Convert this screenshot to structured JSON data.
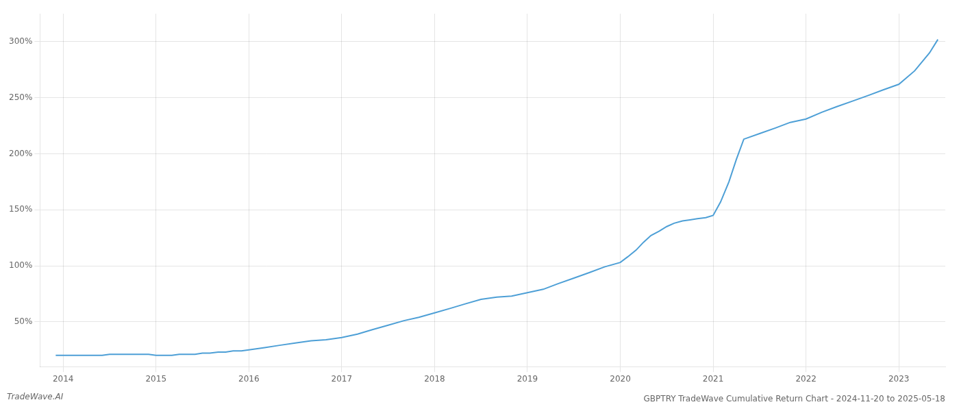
{
  "chart_data": {
    "type": "line",
    "title": "GBPTRY TradeWave Cumulative Return Chart - 2024-11-20 to 2025-05-18",
    "annotations": [
      "TradeWave.AI"
    ],
    "color": "#4d9fd6",
    "x": [
      2013.92,
      2014.0,
      2014.08,
      2014.17,
      2014.25,
      2014.33,
      2014.42,
      2014.5,
      2014.58,
      2014.67,
      2014.75,
      2014.83,
      2014.92,
      2015.0,
      2015.08,
      2015.17,
      2015.25,
      2015.33,
      2015.42,
      2015.5,
      2015.58,
      2015.67,
      2015.75,
      2015.83,
      2015.92,
      2016.0,
      2016.17,
      2016.33,
      2016.5,
      2016.67,
      2016.83,
      2017.0,
      2017.17,
      2017.33,
      2017.5,
      2017.67,
      2017.83,
      2018.0,
      2018.17,
      2018.33,
      2018.5,
      2018.67,
      2018.83,
      2019.0,
      2019.17,
      2019.33,
      2019.5,
      2019.67,
      2019.83,
      2020.0,
      2020.08,
      2020.17,
      2020.25,
      2020.33,
      2020.42,
      2020.5,
      2020.58,
      2020.67,
      2020.75,
      2020.83,
      2020.92,
      2021.0,
      2021.08,
      2021.17,
      2021.25,
      2021.33,
      2021.5,
      2021.67,
      2021.83,
      2022.0,
      2022.17,
      2022.33,
      2022.5,
      2022.67,
      2022.83,
      2023.0,
      2023.17,
      2023.33,
      2023.42
    ],
    "values": [
      20,
      20,
      20,
      20,
      20,
      20,
      20,
      21,
      21,
      21,
      21,
      21,
      21,
      20,
      20,
      20,
      21,
      21,
      21,
      22,
      22,
      23,
      23,
      24,
      24,
      25,
      27,
      29,
      31,
      33,
      34,
      36,
      39,
      43,
      47,
      51,
      54,
      58,
      62,
      66,
      70,
      72,
      73,
      76,
      79,
      84,
      89,
      94,
      99,
      103,
      108,
      114,
      121,
      127,
      131,
      135,
      138,
      140,
      141,
      142,
      143,
      145,
      157,
      175,
      195,
      213,
      218,
      223,
      228,
      231,
      237,
      242,
      247,
      252,
      257,
      262,
      274,
      290,
      302
    ],
    "xlim": [
      2013.75,
      2023.5
    ],
    "ylim": [
      10,
      325
    ],
    "xticks": [
      2014,
      2015,
      2016,
      2017,
      2018,
      2019,
      2020,
      2021,
      2022,
      2023
    ],
    "yticks": [
      {
        "value": 50,
        "label": "50%"
      },
      {
        "value": 100,
        "label": "100%"
      },
      {
        "value": 150,
        "label": "150%"
      },
      {
        "value": 200,
        "label": "200%"
      },
      {
        "value": 250,
        "label": "250%"
      },
      {
        "value": 300,
        "label": "300%"
      }
    ],
    "grid": true
  }
}
